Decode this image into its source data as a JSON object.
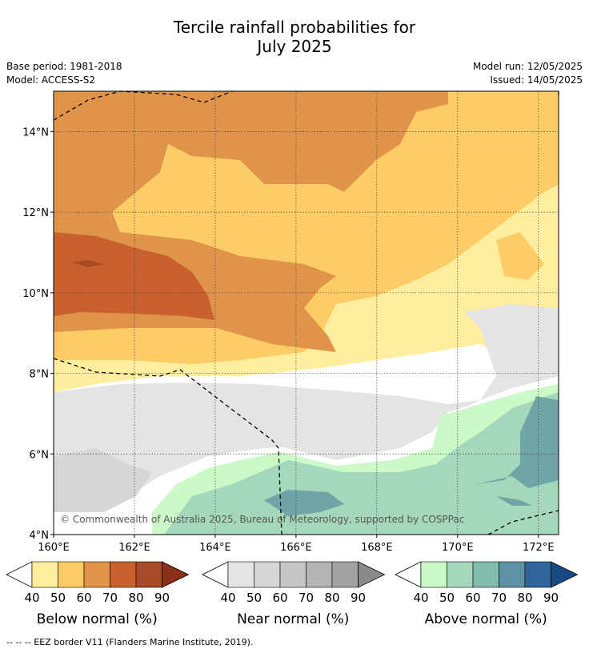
{
  "header": {
    "title_line1": "Tercile rainfall probabilities for",
    "title_line2": "July 2025",
    "base_period": "Base period: 1981-2018",
    "model": "Model: ACCESS-S2",
    "model_run": "Model run: 12/05/2025",
    "issued": "Issued: 14/05/2025"
  },
  "copyright": "© Commonwealth of Australia 2025, Bureau of Meteorology, supported by COSPPac",
  "footer_note": "--  --  -- EEZ border V11 (Flanders Marine Institute, 2019).",
  "chart_data": {
    "type": "heatmap",
    "title": "Tercile rainfall probabilities for July 2025",
    "x_axis": {
      "range": [
        160,
        172.5
      ],
      "ticks": [
        160,
        162,
        164,
        166,
        168,
        170,
        172
      ],
      "tick_labels": [
        "160°E",
        "162°E",
        "164°E",
        "166°E",
        "168°E",
        "170°E",
        "172°E"
      ]
    },
    "y_axis": {
      "range": [
        4,
        15
      ],
      "ticks": [
        4,
        6,
        8,
        10,
        12,
        14
      ],
      "tick_labels": [
        "4°N",
        "6°N",
        "8°N",
        "10°N",
        "12°N",
        "14°N"
      ]
    },
    "grid": true,
    "colorbars": [
      {
        "label": "Below normal (%)",
        "ticks": [
          "40",
          "50",
          "60",
          "70",
          "80",
          "90"
        ],
        "colors": [
          "#ffeea0",
          "#fdcc66",
          "#e0944a",
          "#c8602f",
          "#a84a28",
          "#8a2f1a"
        ]
      },
      {
        "label": "Near normal (%)",
        "ticks": [
          "40",
          "50",
          "60",
          "70",
          "80",
          "90"
        ],
        "colors": [
          "#e4e4e4",
          "#d6d6d6",
          "#c6c6c6",
          "#b4b4b4",
          "#a2a2a2",
          "#8a8a8a"
        ]
      },
      {
        "label": "Above normal (%)",
        "ticks": [
          "40",
          "50",
          "60",
          "70",
          "80",
          "90"
        ],
        "colors": [
          "#ccf9c8",
          "#a4d7bc",
          "#82bcaf",
          "#5d92a4",
          "#31659a",
          "#1a4a80"
        ]
      }
    ],
    "regions": [
      {
        "category": "Below normal",
        "level": "50-60",
        "area": "north 12-15°N"
      },
      {
        "category": "Below normal",
        "level": "60-70",
        "area": "160-167°E, 9-14.5°N"
      },
      {
        "category": "Below normal",
        "level": "70-80",
        "area": "160-164°E, 9.5-11.5°N"
      },
      {
        "category": "Below normal",
        "level": "40-50",
        "area": "band 7.5-12°N"
      },
      {
        "category": "Near normal",
        "level": "40-50",
        "area": "160-170°E, 5.5-7.5°N"
      },
      {
        "category": "Above normal",
        "level": "40-50",
        "area": "south and east 4-7°N"
      },
      {
        "category": "Above normal",
        "level": "50-60",
        "area": "164-172.5°E, 4-6.5°N"
      },
      {
        "category": "Above normal",
        "level": "60-70",
        "area": "165.5-172.5°E, 4.5-7°N"
      }
    ]
  }
}
